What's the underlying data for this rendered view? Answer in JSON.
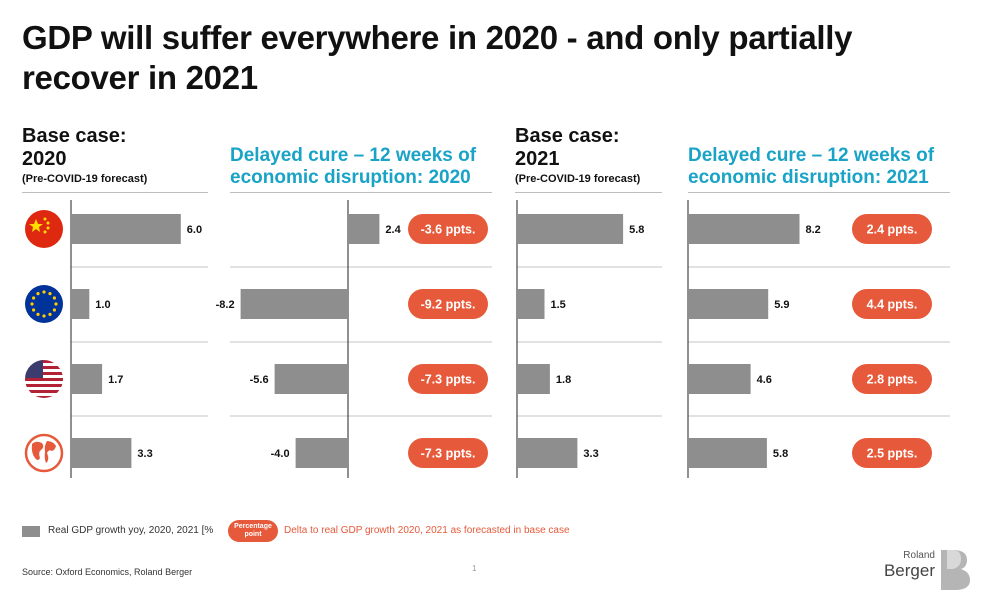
{
  "title": "GDP will suffer everywhere in 2020 - and only partially recover in 2021",
  "headers": [
    {
      "main1": "Base case:",
      "main2": "2020",
      "sub": "(Pre-COVID-19 forecast)"
    },
    {
      "main1": "Delayed cure – 12 weeks of",
      "main2": "economic disruption: 2020"
    },
    {
      "main1": "Base case:",
      "main2": "2021",
      "sub": "(Pre-COVID-19 forecast)"
    },
    {
      "main1": "Delayed cure – 12 weeks of",
      "main2": "economic disruption: 2021"
    }
  ],
  "icons": [
    "china-flag-icon",
    "eu-flag-icon",
    "usa-flag-icon",
    "globe-icon"
  ],
  "colors": {
    "bar": "#8e8e8e",
    "badge": "#e65a3b",
    "accent": "#19a3c6",
    "text": "#111111"
  },
  "chart_data": {
    "type": "bar",
    "categories": [
      "China",
      "Euro area",
      "United States",
      "World"
    ],
    "series": [
      {
        "name": "Base case 2020 (Pre-COVID-19 forecast)",
        "values": [
          6.0,
          1.0,
          1.7,
          3.3
        ],
        "labels": [
          "6.0",
          "1.0",
          "1.7",
          "3.3"
        ]
      },
      {
        "name": "Delayed cure 2020",
        "values": [
          2.4,
          -8.2,
          -5.6,
          -4.0
        ],
        "labels": [
          "2.4",
          "-8.2",
          "-5.6",
          "-4.0"
        ],
        "deltas": [
          "-3.6 ppts.",
          "-9.2 ppts.",
          "-7.3 ppts.",
          "-7.3 ppts."
        ]
      },
      {
        "name": "Base case 2021 (Pre-COVID-19 forecast)",
        "values": [
          5.8,
          1.5,
          1.8,
          3.3
        ],
        "labels": [
          "5.8",
          "1.5",
          "1.8",
          "3.3"
        ]
      },
      {
        "name": "Delayed cure 2021",
        "values": [
          8.2,
          5.9,
          4.6,
          5.8
        ],
        "labels": [
          "8.2",
          "5.9",
          "4.6",
          "5.8"
        ],
        "deltas": [
          "2.4 ppts.",
          "4.4 ppts.",
          "2.8 ppts.",
          "2.5 ppts."
        ]
      }
    ],
    "unit": "%"
  },
  "legend": {
    "bar_label": "Real GDP growth yoy, 2020, 2021 [%",
    "pill_line1": "Percentage",
    "pill_line2": "point",
    "delta_label": "Delta to real GDP growth 2020, 2021 as forecasted in base case"
  },
  "source": "Source: Oxford Economics, Roland Berger",
  "page_number": "1",
  "logo": {
    "line1": "Roland",
    "line2": "Berger"
  }
}
